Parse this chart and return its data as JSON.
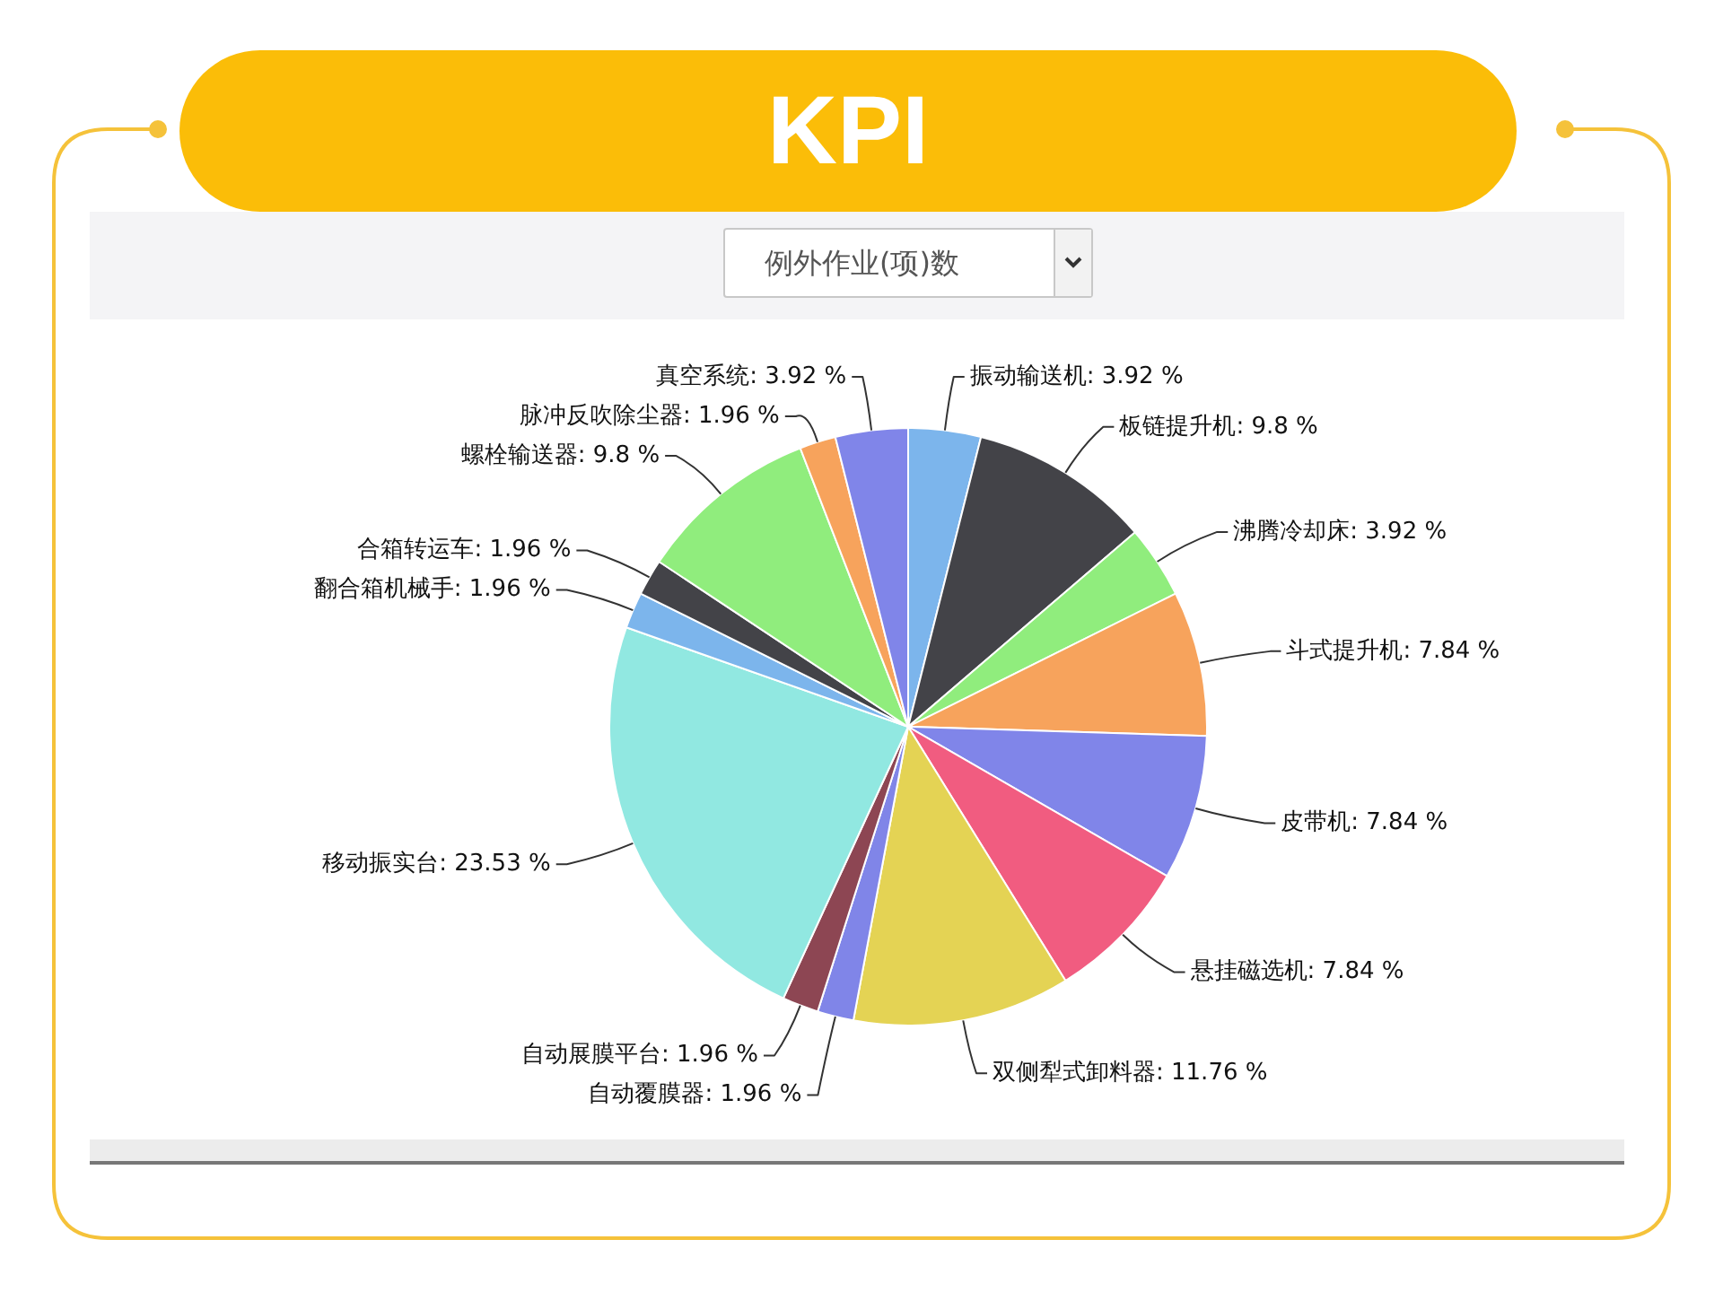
{
  "chart_data": {
    "type": "pie",
    "title": "KPI",
    "subtitle": "例外作业(项)数",
    "categories": [
      "振动输送机",
      "板链提升机",
      "沸腾冷却床",
      "斗式提升机",
      "皮带机",
      "悬挂磁选机",
      "双侧犁式卸料器",
      "自动覆膜器",
      "自动展膜平台",
      "移动振实台",
      "翻合箱机械手",
      "合箱转运车",
      "螺栓输送器",
      "脉冲反吹除尘器",
      "真空系统"
    ],
    "values": [
      3.92,
      9.8,
      3.92,
      7.84,
      7.84,
      7.84,
      11.76,
      1.96,
      1.96,
      23.53,
      1.96,
      1.96,
      9.8,
      1.96,
      3.92
    ],
    "value_labels": [
      "3.92 %",
      "9.8 %",
      "3.92 %",
      "7.84 %",
      "7.84 %",
      "7.84 %",
      "11.76 %",
      "1.96 %",
      "1.96 %",
      "23.53 %",
      "1.96 %",
      "1.96 %",
      "9.8 %",
      "1.96 %",
      "3.92 %"
    ],
    "colors": [
      "#7cb5ec",
      "#434348",
      "#90ed7d",
      "#f7a35c",
      "#8085e9",
      "#f15c80",
      "#e4d354",
      "#8085e8",
      "#8d4653",
      "#91e8e1",
      "#7cb5ec",
      "#434348",
      "#90ed7d",
      "#f7a35c",
      "#8085e9"
    ]
  }
}
